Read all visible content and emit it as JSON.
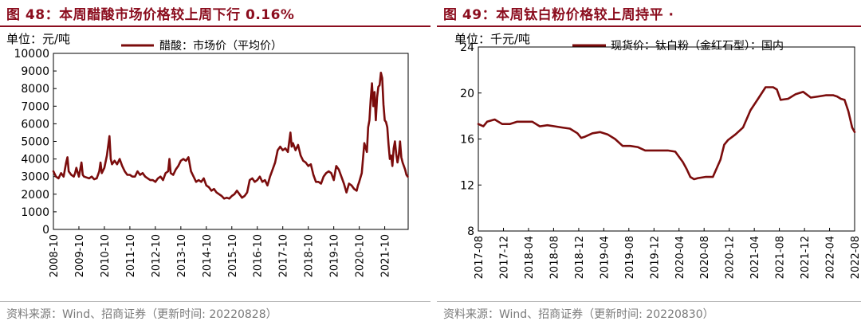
{
  "panels": [
    {
      "title": "图 48：本周醋酸市场价格较上周下行 0.16%",
      "source": "资料来源：Wind、招商证券（更新时间: 20220828）"
    },
    {
      "title": "图 49：本周钛白粉价格较上周持平 ·",
      "source": "资料来源：Wind、招商证券（更新时间: 20220830）"
    }
  ],
  "chart_data": [
    {
      "type": "line",
      "unit_label": "单位：元/吨",
      "ylim": [
        0,
        10000
      ],
      "yticks": [
        0,
        1000,
        2000,
        3000,
        4000,
        5000,
        6000,
        7000,
        8000,
        9000,
        10000
      ],
      "ytick_labels": [
        "0",
        "1000",
        "2000",
        "3000",
        "4000",
        "5000",
        "6000",
        "7000",
        "8000",
        "9000",
        "10000"
      ],
      "xlim": [
        2008.75,
        2022.67
      ],
      "xticks": [
        2008.75,
        2009.75,
        2010.75,
        2011.75,
        2012.75,
        2013.75,
        2014.75,
        2015.75,
        2016.75,
        2017.75,
        2018.75,
        2019.75,
        2020.75,
        2021.75
      ],
      "xtick_labels": [
        "2008-10",
        "2009-10",
        "2010-10",
        "2011-10",
        "2012-10",
        "2013-10",
        "2014-10",
        "2015-10",
        "2016-10",
        "2017-10",
        "2018-10",
        "2019-10",
        "2020-10",
        "2021-10"
      ],
      "grid": false,
      "legend_position": "top-left",
      "color": "#7b0c0c",
      "series": [
        {
          "name": "醋酸：市场价（平均价）",
          "x": [
            2008.75,
            2008.85,
            2008.95,
            2009.05,
            2009.15,
            2009.25,
            2009.3,
            2009.35,
            2009.45,
            2009.55,
            2009.6,
            2009.65,
            2009.75,
            2009.85,
            2009.9,
            2009.95,
            2010.05,
            2010.15,
            2010.25,
            2010.35,
            2010.45,
            2010.55,
            2010.6,
            2010.65,
            2010.75,
            2010.85,
            2010.95,
            2011.0,
            2011.05,
            2011.15,
            2011.25,
            2011.35,
            2011.45,
            2011.55,
            2011.65,
            2011.75,
            2011.85,
            2011.95,
            2012.05,
            2012.15,
            2012.25,
            2012.35,
            2012.45,
            2012.55,
            2012.65,
            2012.75,
            2012.85,
            2012.95,
            2013.05,
            2013.15,
            2013.25,
            2013.3,
            2013.35,
            2013.45,
            2013.55,
            2013.65,
            2013.75,
            2013.85,
            2013.95,
            2014.05,
            2014.15,
            2014.25,
            2014.35,
            2014.45,
            2014.55,
            2014.65,
            2014.75,
            2014.85,
            2014.95,
            2015.05,
            2015.15,
            2015.25,
            2015.35,
            2015.45,
            2015.55,
            2015.65,
            2015.75,
            2015.85,
            2015.95,
            2016.05,
            2016.15,
            2016.25,
            2016.35,
            2016.45,
            2016.55,
            2016.65,
            2016.75,
            2016.85,
            2016.95,
            2017.05,
            2017.15,
            2017.25,
            2017.35,
            2017.45,
            2017.55,
            2017.65,
            2017.75,
            2017.85,
            2017.95,
            2018.05,
            2018.1,
            2018.15,
            2018.25,
            2018.35,
            2018.45,
            2018.55,
            2018.65,
            2018.75,
            2018.85,
            2018.95,
            2019.05,
            2019.15,
            2019.25,
            2019.35,
            2019.45,
            2019.55,
            2019.65,
            2019.75,
            2019.85,
            2019.95,
            2020.05,
            2020.15,
            2020.25,
            2020.35,
            2020.45,
            2020.55,
            2020.65,
            2020.7,
            2020.75,
            2020.85,
            2020.95,
            2021.05,
            2021.1,
            2021.15,
            2021.2,
            2021.25,
            2021.3,
            2021.35,
            2021.4,
            2021.45,
            2021.5,
            2021.55,
            2021.6,
            2021.65,
            2021.7,
            2021.75,
            2021.8,
            2021.85,
            2021.9,
            2021.95,
            2022.0,
            2022.05,
            2022.1,
            2022.15,
            2022.2,
            2022.25,
            2022.3,
            2022.35,
            2022.4,
            2022.45,
            2022.5,
            2022.55,
            2022.6,
            2022.65
          ],
          "y": [
            3300,
            3000,
            2900,
            3200,
            3000,
            3800,
            4100,
            3300,
            3100,
            3000,
            3200,
            3500,
            3000,
            3800,
            3100,
            3000,
            2950,
            2900,
            3000,
            2850,
            2900,
            3300,
            3800,
            3200,
            3500,
            4200,
            5300,
            4000,
            3700,
            3900,
            3700,
            4000,
            3600,
            3300,
            3100,
            3100,
            3000,
            3000,
            3300,
            3100,
            3200,
            3000,
            2900,
            2800,
            2800,
            2700,
            2900,
            3000,
            2800,
            3200,
            3300,
            4000,
            3200,
            3100,
            3400,
            3600,
            3900,
            4000,
            3900,
            4100,
            3300,
            3000,
            2700,
            2800,
            2700,
            2900,
            2500,
            2400,
            2200,
            2300,
            2100,
            2000,
            1900,
            1750,
            1800,
            1750,
            1900,
            2000,
            2200,
            2000,
            1800,
            1900,
            2100,
            2800,
            2900,
            2700,
            2800,
            3000,
            2700,
            2800,
            2500,
            3000,
            3400,
            3800,
            4500,
            4700,
            4500,
            4600,
            4400,
            5500,
            4700,
            4900,
            4500,
            4800,
            4200,
            3900,
            3800,
            3600,
            3700,
            3100,
            2700,
            2700,
            2600,
            3000,
            3200,
            3300,
            3200,
            2800,
            3600,
            3400,
            3000,
            2600,
            2100,
            2600,
            2500,
            2300,
            2200,
            2500,
            2700,
            3200,
            4900,
            4400,
            5800,
            6200,
            7400,
            8300,
            7000,
            7800,
            6200,
            7500,
            8100,
            8200,
            8900,
            8600,
            7100,
            6200,
            6100,
            5800,
            4800,
            4000,
            4200,
            3600,
            4600,
            5000,
            4300,
            3800,
            4200,
            5000,
            4100,
            3800,
            3600,
            3400,
            3100,
            3000
          ]
        }
      ]
    },
    {
      "type": "line",
      "unit_label": "单位：千元/吨",
      "ylim": [
        8,
        24
      ],
      "yticks": [
        8,
        12,
        16,
        20,
        24
      ],
      "ytick_labels": [
        "8",
        "12",
        "16",
        "20",
        "24"
      ],
      "xlim": [
        2017.583,
        2022.583
      ],
      "xticks": [
        2017.583,
        2017.917,
        2018.25,
        2018.583,
        2018.917,
        2019.25,
        2019.583,
        2019.917,
        2020.25,
        2020.583,
        2020.917,
        2021.25,
        2021.583,
        2021.917,
        2022.25,
        2022.583
      ],
      "xtick_labels": [
        "2017-08",
        "2017-12",
        "2018-04",
        "2018-08",
        "2018-12",
        "2019-04",
        "2019-08",
        "2019-12",
        "2020-04",
        "2020-08",
        "2020-12",
        "2021-04",
        "2021-08",
        "2021-12",
        "2022-04",
        "2022-08"
      ],
      "grid": false,
      "legend_position": "top-left",
      "color": "#7b0c0c",
      "series": [
        {
          "name": "现货价：钛白粉（金红石型）：国内",
          "x": [
            2017.583,
            2017.65,
            2017.7,
            2017.8,
            2017.9,
            2018.0,
            2018.1,
            2018.2,
            2018.3,
            2018.4,
            2018.5,
            2018.6,
            2018.7,
            2018.8,
            2018.9,
            2018.95,
            2019.0,
            2019.1,
            2019.2,
            2019.3,
            2019.4,
            2019.5,
            2019.6,
            2019.7,
            2019.8,
            2019.9,
            2020.0,
            2020.1,
            2020.2,
            2020.3,
            2020.35,
            2020.4,
            2020.45,
            2020.5,
            2020.6,
            2020.7,
            2020.8,
            2020.85,
            2020.9,
            2021.0,
            2021.1,
            2021.2,
            2021.3,
            2021.4,
            2021.5,
            2021.55,
            2021.6,
            2021.7,
            2021.8,
            2021.9,
            2022.0,
            2022.1,
            2022.2,
            2022.3,
            2022.35,
            2022.4,
            2022.45,
            2022.5,
            2022.55,
            2022.583
          ],
          "y": [
            17.3,
            17.1,
            17.5,
            17.7,
            17.3,
            17.3,
            17.5,
            17.5,
            17.5,
            17.1,
            17.2,
            17.1,
            17.0,
            16.9,
            16.5,
            16.1,
            16.2,
            16.5,
            16.6,
            16.4,
            16.0,
            15.4,
            15.4,
            15.3,
            15.0,
            15.0,
            15.0,
            15.0,
            14.9,
            14.0,
            13.4,
            12.7,
            12.5,
            12.6,
            12.7,
            12.7,
            14.2,
            15.5,
            15.9,
            16.4,
            17.0,
            18.5,
            19.5,
            20.5,
            20.5,
            20.3,
            19.4,
            19.5,
            19.9,
            20.1,
            19.6,
            19.7,
            19.8,
            19.8,
            19.7,
            19.5,
            19.4,
            18.4,
            17.0,
            16.6
          ]
        }
      ]
    }
  ]
}
